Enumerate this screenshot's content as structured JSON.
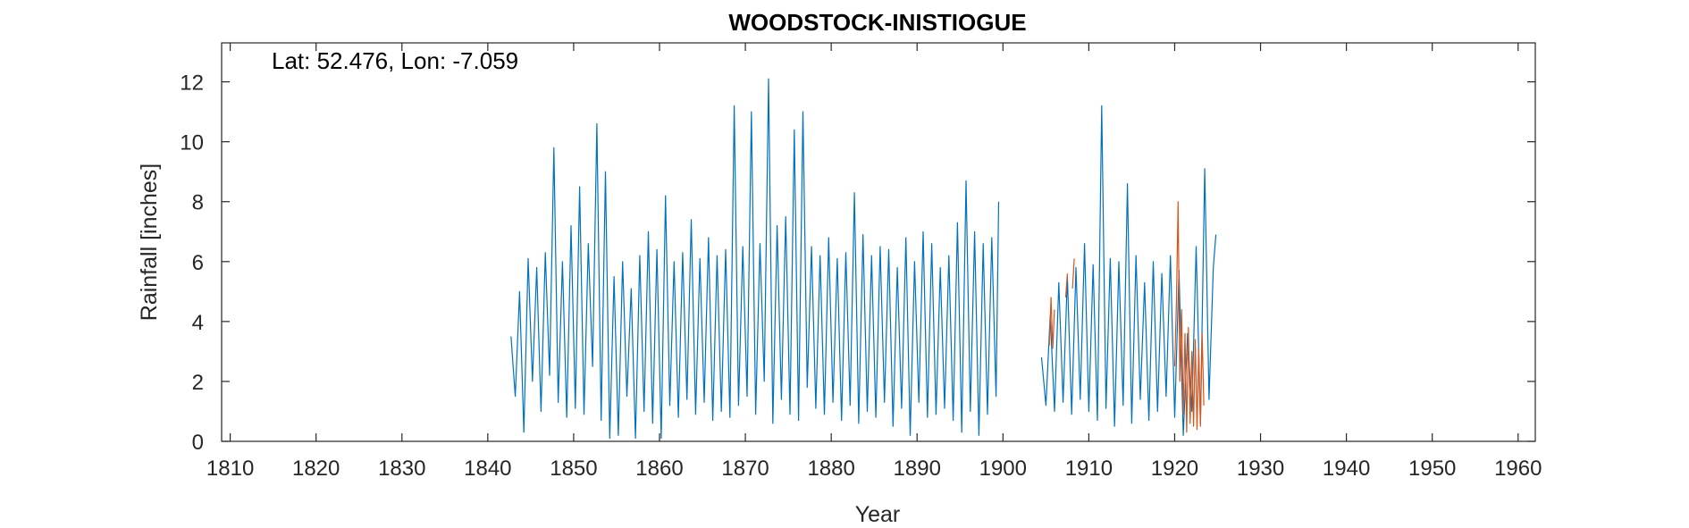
{
  "chart_data": {
    "type": "line",
    "title": "WOODSTOCK-INISTIOGUE",
    "annotation": "Lat: 52.476, Lon: -7.059",
    "xlabel": "Year",
    "ylabel": "Rainfall [inches]",
    "xlim": [
      1809,
      1962
    ],
    "ylim": [
      0,
      13.3
    ],
    "xticks": [
      1810,
      1820,
      1830,
      1840,
      1850,
      1860,
      1870,
      1880,
      1890,
      1900,
      1910,
      1920,
      1930,
      1940,
      1950,
      1960
    ],
    "yticks": [
      0,
      2,
      4,
      6,
      8,
      10,
      12
    ],
    "grid": false,
    "series": [
      {
        "color": "#0072BD",
        "segments": [
          {
            "x": [
              1842.7,
              1843.2,
              1843.7,
              1844.2,
              1844.7,
              1845.2,
              1845.7,
              1846.2,
              1846.7,
              1847.2,
              1847.7,
              1848.2,
              1848.7,
              1849.2,
              1849.7,
              1850.2,
              1850.7,
              1851.2,
              1851.7,
              1852.2,
              1852.7,
              1853.2,
              1853.7,
              1854.2,
              1854.7,
              1855.2,
              1855.7,
              1856.2,
              1856.7,
              1857.2,
              1857.7,
              1858.2,
              1858.7,
              1859.2,
              1859.7,
              1860.2,
              1860.7,
              1861.2,
              1861.7,
              1862.2,
              1862.7,
              1863.2,
              1863.7,
              1864.2,
              1864.7,
              1865.2,
              1865.7,
              1866.2,
              1866.7,
              1867.2,
              1867.7,
              1868.2,
              1868.7,
              1869.2,
              1869.7,
              1870.2,
              1870.7,
              1871.2,
              1871.7,
              1872.2,
              1872.7,
              1873.2,
              1873.7,
              1874.2,
              1874.7,
              1875.2,
              1875.7,
              1876.2,
              1876.7,
              1877.2,
              1877.7,
              1878.2,
              1878.7,
              1879.2,
              1879.7,
              1880.2,
              1880.7,
              1881.2,
              1881.7,
              1882.2,
              1882.7,
              1883.2,
              1883.7,
              1884.2,
              1884.7,
              1885.2,
              1885.7,
              1886.2,
              1886.7,
              1887.2,
              1887.7,
              1888.2,
              1888.7,
              1889.2,
              1889.7,
              1890.2,
              1890.7,
              1891.2,
              1891.7,
              1892.2,
              1892.7,
              1893.2,
              1893.7,
              1894.2,
              1894.7,
              1895.2,
              1895.7,
              1896.2,
              1896.7,
              1897.2,
              1897.7,
              1898.2,
              1898.7,
              1899.2,
              1899.5
            ],
            "y": [
              3.5,
              1.5,
              5.0,
              0.3,
              6.1,
              2.0,
              5.8,
              1.0,
              6.3,
              2.2,
              9.8,
              1.3,
              6.0,
              0.8,
              7.2,
              1.1,
              8.5,
              0.9,
              6.6,
              2.5,
              10.6,
              0.7,
              9.0,
              0.1,
              5.5,
              0.2,
              6.0,
              1.5,
              5.1,
              0.1,
              6.2,
              1.0,
              7.0,
              0.6,
              6.4,
              0.1,
              8.2,
              1.2,
              6.0,
              0.8,
              6.3,
              1.4,
              7.4,
              0.9,
              6.1,
              1.3,
              6.8,
              0.7,
              6.2,
              1.0,
              6.4,
              0.8,
              11.2,
              1.2,
              6.5,
              1.5,
              11.0,
              0.9,
              6.6,
              2.0,
              12.1,
              0.6,
              7.2,
              1.4,
              7.5,
              0.9,
              10.4,
              0.7,
              11.0,
              1.8,
              6.5,
              1.1,
              6.2,
              0.9,
              6.8,
              1.3,
              6.1,
              0.7,
              6.3,
              1.2,
              8.3,
              0.6,
              6.9,
              1.0,
              6.2,
              0.8,
              6.5,
              1.3,
              6.4,
              0.5,
              5.8,
              1.1,
              6.8,
              0.2,
              6.0,
              1.3,
              7.0,
              0.8,
              6.6,
              0.9,
              5.8,
              1.1,
              6.2,
              0.7,
              7.3,
              0.3,
              8.7,
              1.0,
              7.0,
              0.2,
              6.6,
              0.9,
              6.8,
              1.5,
              8.0
            ]
          },
          {
            "x": [
              1904.5,
              1905.0,
              1905.5,
              1906.0,
              1906.5,
              1907.0,
              1907.5,
              1908.0,
              1908.5,
              1909.0,
              1909.5,
              1910.0,
              1910.5,
              1911.0,
              1911.5,
              1912.0,
              1912.5,
              1913.0,
              1913.5,
              1914.0,
              1914.5,
              1915.0,
              1915.5,
              1916.0,
              1916.5,
              1917.0,
              1917.5,
              1918.0,
              1918.5,
              1919.0,
              1919.5,
              1920.0,
              1920.5,
              1921.0,
              1921.5,
              1922.0,
              1922.5,
              1923.0,
              1923.5,
              1924.0,
              1924.5,
              1924.8
            ],
            "y": [
              2.8,
              1.2,
              4.2,
              1.0,
              5.3,
              1.3,
              5.5,
              0.9,
              5.8,
              1.4,
              6.6,
              1.0,
              5.9,
              0.7,
              11.2,
              1.1,
              6.1,
              0.5,
              6.0,
              1.2,
              8.6,
              0.6,
              6.2,
              1.4,
              5.3,
              0.7,
              6.0,
              1.0,
              5.6,
              1.5,
              6.2,
              0.8,
              5.7,
              0.2,
              3.6,
              1.0,
              6.5,
              0.6,
              9.1,
              1.4,
              5.8,
              6.9
            ]
          }
        ]
      },
      {
        "color": "#D95319",
        "segments": [
          {
            "x": [
              1905.4,
              1905.6,
              1905.8,
              1906.0
            ],
            "y": [
              3.2,
              4.8,
              3.1,
              4.4
            ]
          },
          {
            "x": [
              1907.3,
              1907.5
            ],
            "y": [
              4.8,
              5.6
            ]
          },
          {
            "x": [
              1908.1,
              1908.3
            ],
            "y": [
              5.1,
              6.1
            ]
          },
          {
            "x": [
              1920.0,
              1920.2,
              1920.4,
              1920.6,
              1920.8,
              1921.0,
              1921.2,
              1921.4,
              1921.6,
              1921.8,
              1922.0,
              1922.2,
              1922.4,
              1922.6,
              1922.8,
              1923.0,
              1923.2,
              1923.4
            ],
            "y": [
              2.5,
              4.6,
              8.0,
              2.0,
              4.4,
              0.9,
              3.6,
              0.3,
              3.8,
              0.6,
              3.0,
              0.5,
              3.4,
              0.4,
              3.1,
              0.5,
              3.6,
              1.2
            ]
          }
        ]
      }
    ]
  }
}
